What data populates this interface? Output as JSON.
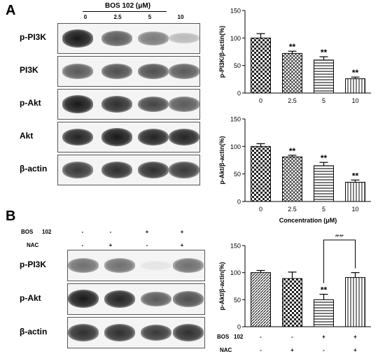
{
  "panels": {
    "a": {
      "letter": "A",
      "treatment_header": "BOS 102 (μM)",
      "lane_labels": [
        "0",
        "2.5",
        "5",
        "10"
      ],
      "blots": [
        {
          "label": "p-PI3K",
          "bands": [
            1.0,
            0.7,
            0.55,
            0.25
          ]
        },
        {
          "label": "PI3K",
          "bands": [
            0.7,
            0.75,
            0.75,
            0.7
          ]
        },
        {
          "label": "p-Akt",
          "bands": [
            1.0,
            0.9,
            0.8,
            0.7
          ]
        },
        {
          "label": "Akt",
          "bands": [
            0.95,
            1.0,
            0.95,
            0.95
          ]
        },
        {
          "label": "β-actin",
          "bands": [
            0.85,
            0.9,
            0.9,
            0.85
          ]
        }
      ]
    },
    "b": {
      "letter": "B",
      "conditions": [
        {
          "label": "BOS",
          "extra": "102",
          "signs": [
            "-",
            "-",
            "+",
            "+"
          ]
        },
        {
          "label": "NAC",
          "extra": "",
          "signs": [
            "-",
            "+",
            "-",
            "+"
          ]
        }
      ],
      "blots": [
        {
          "label": "p-PI3K",
          "bands": [
            0.6,
            0.6,
            0.05,
            0.6
          ]
        },
        {
          "label": "p-Akt",
          "bands": [
            1.0,
            0.95,
            0.7,
            0.75
          ]
        },
        {
          "label": "β-actin",
          "bands": [
            0.9,
            0.9,
            0.85,
            0.9
          ]
        }
      ]
    }
  },
  "chart_data": [
    {
      "type": "bar",
      "categories": [
        "0",
        "2.5",
        "5",
        "10"
      ],
      "values": [
        100,
        72,
        60,
        26
      ],
      "errors": [
        8,
        4,
        6,
        3
      ],
      "annotations": [
        "",
        "**",
        "**",
        "**"
      ],
      "ylabel": "p-PI3K/β-actin(%)",
      "xlabel": "",
      "ylim": [
        0,
        150
      ],
      "yticks": [
        0,
        50,
        100,
        150
      ],
      "bar_patterns": [
        "checker",
        "hatch",
        "hstripe",
        "vstripe"
      ]
    },
    {
      "type": "bar",
      "categories": [
        "0",
        "2.5",
        "5",
        "10"
      ],
      "values": [
        100,
        81,
        65,
        35
      ],
      "errors": [
        5,
        3,
        6,
        4
      ],
      "annotations": [
        "",
        "**",
        "**",
        "**"
      ],
      "ylabel": "p-Akt/β-actin(%)",
      "xlabel": "Concentration (μM)",
      "ylim": [
        0,
        150
      ],
      "yticks": [
        0,
        50,
        100,
        150
      ],
      "bar_patterns": [
        "checker",
        "hatch",
        "hstripe",
        "vstripe"
      ]
    },
    {
      "type": "bar",
      "categories": [
        "1",
        "2",
        "3",
        "4"
      ],
      "values": [
        100,
        89,
        50,
        91
      ],
      "errors": [
        4,
        12,
        10,
        9
      ],
      "annotations": [
        "",
        "",
        "**",
        ""
      ],
      "bracket": {
        "from": 2,
        "to": 3,
        "label": "##"
      },
      "ylabel": "p-Akt/β-actin(%)",
      "xlabel": "",
      "ylim": [
        0,
        150
      ],
      "yticks": [
        0,
        50,
        100,
        150
      ],
      "bar_patterns": [
        "hatch-dense",
        "checker",
        "hstripe",
        "vstripe"
      ],
      "conditions": [
        {
          "label": "BOS",
          "extra": "102",
          "signs": [
            "-",
            "-",
            "+",
            "+"
          ]
        },
        {
          "label": "NAC",
          "extra": "",
          "signs": [
            "-",
            "+",
            "-",
            "+"
          ]
        }
      ]
    }
  ]
}
